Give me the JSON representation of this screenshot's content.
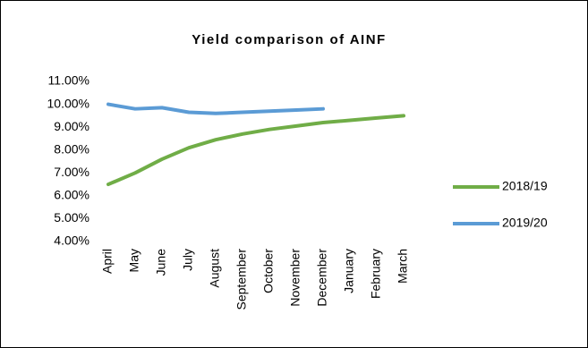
{
  "chart_data": {
    "type": "line",
    "title": "Yield comparison of AINF",
    "categories": [
      "April",
      "May",
      "June",
      "July",
      "August",
      "September",
      "October",
      "November",
      "December",
      "January",
      "February",
      "March"
    ],
    "series": [
      {
        "name": "2018/19",
        "color": "#70ad47",
        "values": [
          6.5,
          7.0,
          7.6,
          8.1,
          8.45,
          8.7,
          8.9,
          9.05,
          9.2,
          9.3,
          9.4,
          9.5
        ]
      },
      {
        "name": "2019/20",
        "color": "#5b9bd5",
        "values": [
          10.0,
          9.8,
          9.85,
          9.65,
          9.6,
          9.65,
          9.7,
          9.75,
          9.8,
          null,
          null,
          null
        ]
      }
    ],
    "ylim": [
      4,
      11
    ],
    "yticks": [
      {
        "value": 4,
        "label": "4.00%"
      },
      {
        "value": 5,
        "label": "5.00%"
      },
      {
        "value": 6,
        "label": "6.00%"
      },
      {
        "value": 7,
        "label": "7.00%"
      },
      {
        "value": 8,
        "label": "8.00%"
      },
      {
        "value": 9,
        "label": "9.00%"
      },
      {
        "value": 10,
        "label": "10.00%"
      },
      {
        "value": 11,
        "label": "11.00%"
      }
    ],
    "grid": false,
    "legend": "right"
  }
}
